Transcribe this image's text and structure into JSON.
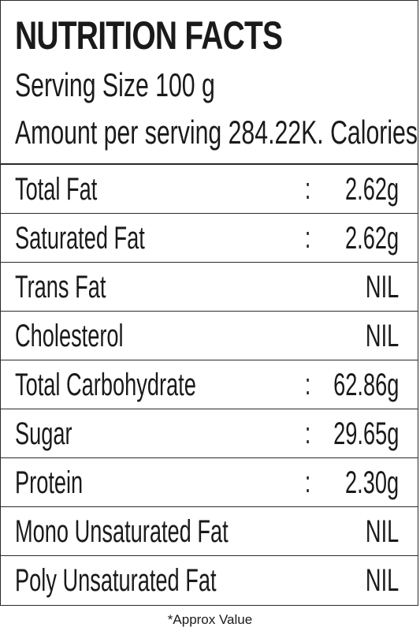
{
  "header": {
    "title": "NUTRITION FACTS",
    "serving_size": "Serving Size 100 g",
    "amount_per_serving": "Amount per serving 284.22K. Calories"
  },
  "rows": [
    {
      "label": "Total Fat",
      "colon": ":",
      "value": "2.62g"
    },
    {
      "label": "Saturated Fat",
      "colon": ":",
      "value": "2.62g"
    },
    {
      "label": "Trans Fat",
      "colon": "",
      "value": "NIL"
    },
    {
      "label": "Cholesterol",
      "colon": "",
      "value": "NIL"
    },
    {
      "label": "Total Carbohydrate",
      "colon": ":",
      "value": "62.86g"
    },
    {
      "label": "Sugar",
      "colon": ":",
      "value": "29.65g"
    },
    {
      "label": "Protein",
      "colon": ":",
      "value": "2.30g"
    },
    {
      "label": "Mono Unsaturated Fat",
      "colon": "",
      "value": "NIL"
    },
    {
      "label": "Poly Unsaturated Fat",
      "colon": "",
      "value": "NIL"
    }
  ],
  "footnote": "*Approx Value"
}
